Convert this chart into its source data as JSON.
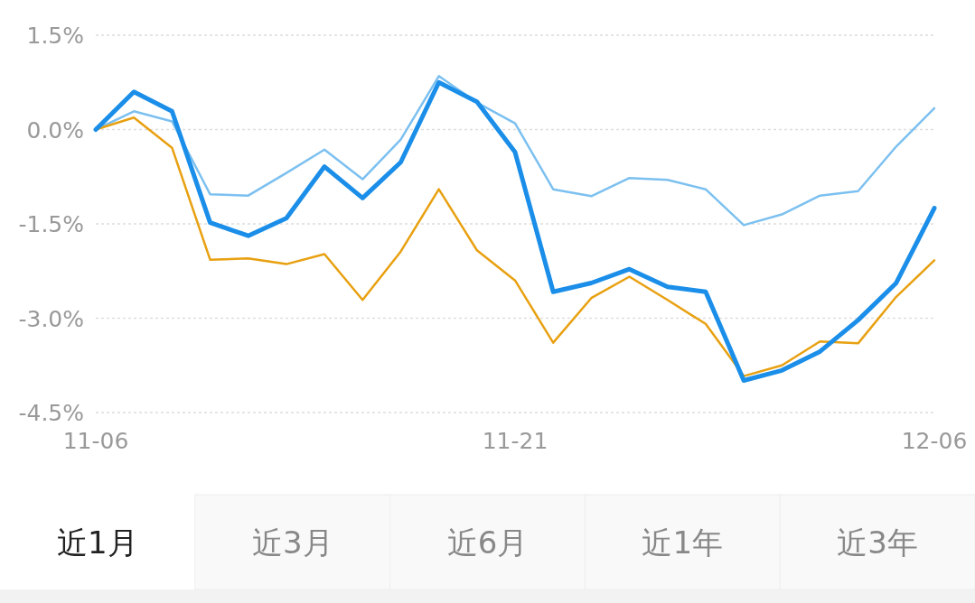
{
  "chart_data": {
    "type": "line",
    "categories": [
      "11-06",
      null,
      null,
      null,
      null,
      null,
      null,
      null,
      null,
      null,
      null,
      "11-21",
      null,
      null,
      null,
      null,
      null,
      null,
      null,
      null,
      null,
      null,
      "12-06"
    ],
    "series": [
      {
        "color": "#7cc0f0",
        "values": [
          0,
          0.29,
          0.13,
          -1.03,
          -1.05,
          -0.69,
          -0.32,
          -0.79,
          -0.16,
          0.85,
          0.43,
          0.1,
          -0.95,
          -1.06,
          -0.77,
          -0.8,
          -0.95,
          -1.52,
          -1.35,
          -1.05,
          -0.98,
          -0.27,
          0.34
        ]
      },
      {
        "color": "#e8a010",
        "values": [
          0,
          0.19,
          -0.29,
          -2.07,
          -2.05,
          -2.14,
          -1.98,
          -2.71,
          -1.94,
          -0.95,
          -1.92,
          -2.4,
          -3.39,
          -2.68,
          -2.34,
          -2.71,
          -3.09,
          -3.92,
          -3.75,
          -3.37,
          -3.4,
          -2.66,
          -2.08
        ]
      },
      {
        "color": "#1a8ee8",
        "values": [
          0,
          0.6,
          0.29,
          -1.48,
          -1.69,
          -1.41,
          -0.59,
          -1.09,
          -0.52,
          0.75,
          0.44,
          -0.36,
          -2.58,
          -2.44,
          -2.22,
          -2.5,
          -2.58,
          -3.99,
          -3.83,
          -3.53,
          -3.03,
          -2.44,
          -1.25
        ]
      }
    ],
    "ylim": [
      -4.5,
      1.5
    ],
    "yticks": [
      {
        "value": 1.5,
        "label": "1.5%"
      },
      {
        "value": 0,
        "label": "0.0%"
      },
      {
        "value": -1.5,
        "label": "-1.5%"
      },
      {
        "value": -3,
        "label": "-3.0%"
      },
      {
        "value": -4.5,
        "label": "-4.5%"
      }
    ],
    "grid": "y",
    "marker": "none",
    "line_style": "solid",
    "annotations": [
      "近1月",
      "近3月",
      "近6月",
      "近1年",
      "近3年"
    ]
  }
}
